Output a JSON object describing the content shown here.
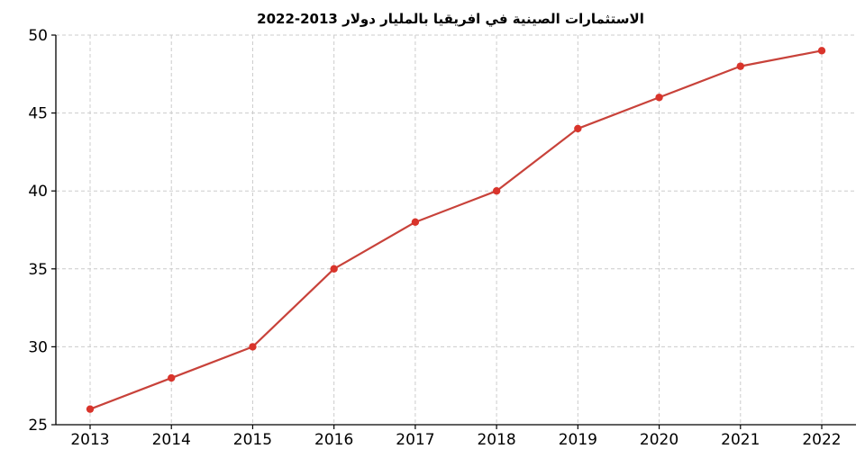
{
  "chart_data": {
    "type": "line",
    "title": "الاستثمارات الصينية في افريقيا بالمليار دولار 2013-2022",
    "xlabel": "",
    "ylabel": "",
    "x": [
      "2013",
      "2014",
      "2015",
      "2016",
      "2017",
      "2018",
      "2019",
      "2020",
      "2021",
      "2022"
    ],
    "series": [
      {
        "values": [
          26,
          28,
          30,
          35,
          38,
          40,
          44,
          46,
          48,
          49
        ]
      }
    ],
    "ylim": [
      25,
      50
    ],
    "yticks": [
      25,
      30,
      35,
      40,
      45,
      50
    ],
    "grid": true,
    "legend": "none",
    "colors": {
      "line": "#c8423a",
      "marker": "#d9342b",
      "grid": "#cccccc",
      "axis": "#000000"
    }
  }
}
